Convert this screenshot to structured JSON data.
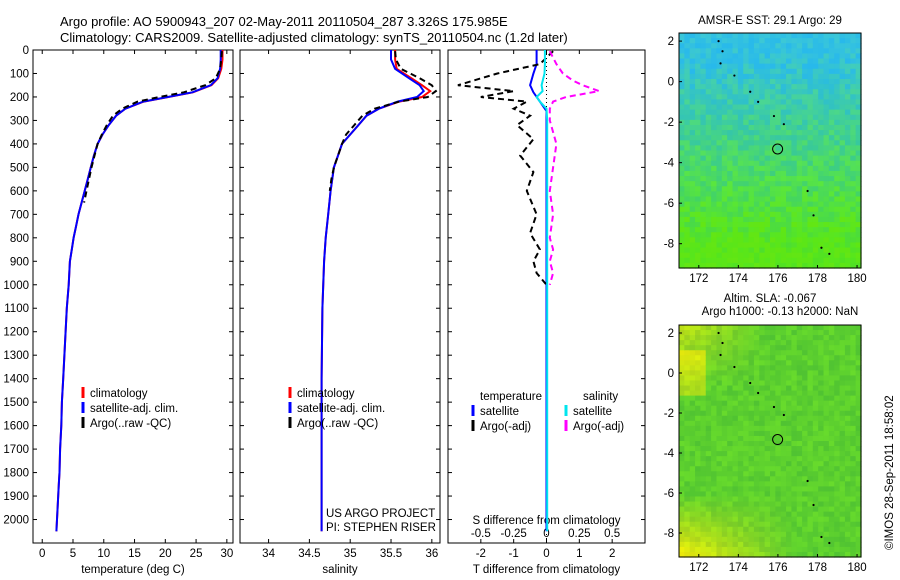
{
  "figure": {
    "title_line1": "Argo profile: AO 5900943_207 02-May-2011 20110504_287 3.326S 175.985E",
    "title_line2": "Climatology: CARS2009. Satellite-adjusted climatology: synTS_20110504.nc (1.2d later)",
    "side_stamp": "©IMOS 28-Sep-2011 18:58:02",
    "credit_line1": "US ARGO PROJECT",
    "credit_line2": "PI: STEPHEN RISER",
    "colors": {
      "climatology": "#ff0000",
      "satellite": "#0000ff",
      "argo": "#000000",
      "t_sat": "#0000ff",
      "s_sat": "#00e5ee",
      "s_argo": "#ff00ff"
    }
  },
  "chart_data": [
    {
      "id": "temperature",
      "type": "line",
      "xlabel": "temperature (deg C)",
      "ylabel": "",
      "xlim": [
        -1.5,
        31
      ],
      "ylim": [
        2100,
        0
      ],
      "xticks": [
        "0",
        "5",
        "10",
        "15",
        "20",
        "25",
        "30"
      ],
      "xtick_values": [
        0,
        5,
        10,
        15,
        20,
        25,
        30
      ],
      "yticks": [
        "0",
        "100",
        "200",
        "300",
        "400",
        "500",
        "600",
        "700",
        "800",
        "900",
        "1000",
        "1100",
        "1200",
        "1300",
        "1400",
        "1500",
        "1600",
        "1700",
        "1800",
        "1900",
        "2000"
      ],
      "ytick_values": [
        0,
        100,
        200,
        300,
        400,
        500,
        600,
        700,
        800,
        900,
        1000,
        1100,
        1200,
        1300,
        1400,
        1500,
        1600,
        1700,
        1800,
        1900,
        2000
      ],
      "legend": [
        "climatology",
        "satellite-adj. clim.",
        "Argo(..raw -QC)"
      ],
      "legend_position": "lower-middle",
      "series": [
        {
          "name": "climatology",
          "color": "#ff0000",
          "dash": "",
          "x": [
            29.3,
            29.3,
            29.1,
            28.6,
            27.5,
            24.5,
            20.5,
            16.5,
            13.5,
            12.0,
            10.8,
            9.8,
            9.0,
            8.4,
            7.9,
            7.4,
            6.9,
            6.4,
            5.9,
            5.5,
            5.1,
            4.8,
            4.5,
            4.3,
            4.0,
            3.8,
            3.6,
            3.4,
            3.2,
            3.1,
            2.9,
            2.8,
            2.7,
            2.6,
            2.5,
            2.4,
            2.3
          ],
          "y": [
            0,
            40,
            80,
            120,
            150,
            180,
            200,
            220,
            250,
            280,
            320,
            360,
            400,
            450,
            500,
            550,
            600,
            650,
            700,
            750,
            800,
            850,
            900,
            1000,
            1100,
            1200,
            1300,
            1400,
            1500,
            1600,
            1700,
            1800,
            1850,
            1900,
            1950,
            2000,
            2050
          ]
        },
        {
          "name": "satellite-adj. clim.",
          "color": "#0000ff",
          "dash": "",
          "x": [
            29.0,
            29.0,
            28.9,
            28.5,
            27.4,
            24.4,
            20.4,
            16.4,
            13.5,
            12.0,
            10.8,
            9.8,
            9.0,
            8.4,
            7.9,
            7.4,
            6.9,
            6.4,
            5.9,
            5.5,
            5.1,
            4.8,
            4.5,
            4.3,
            4.0,
            3.8,
            3.6,
            3.4,
            3.2,
            3.1,
            2.9,
            2.8,
            2.7,
            2.6,
            2.5,
            2.4,
            2.3
          ],
          "y": [
            0,
            40,
            80,
            120,
            150,
            180,
            200,
            220,
            250,
            280,
            320,
            360,
            400,
            450,
            500,
            550,
            600,
            650,
            700,
            750,
            800,
            850,
            900,
            1000,
            1100,
            1200,
            1300,
            1400,
            1500,
            1600,
            1700,
            1800,
            1850,
            1900,
            1950,
            2000,
            2050
          ]
        },
        {
          "name": "Argo(..raw -QC)",
          "color": "#000000",
          "dash": "6,4",
          "x": [
            29.2,
            29.1,
            28.9,
            28.2,
            26.5,
            23.0,
            19.0,
            15.5,
            13.0,
            11.5,
            10.5,
            9.7,
            9.0,
            8.5,
            8.0,
            7.6,
            7.2,
            6.8
          ],
          "y": [
            5,
            40,
            80,
            120,
            150,
            180,
            200,
            220,
            250,
            280,
            320,
            360,
            400,
            450,
            500,
            550,
            600,
            650
          ]
        }
      ]
    },
    {
      "id": "salinity",
      "type": "line",
      "xlabel": "salinity",
      "ylabel": "",
      "xlim": [
        33.65,
        36.1
      ],
      "ylim": [
        2100,
        0
      ],
      "xticks": [
        "34",
        "34.5",
        "35",
        "35.5",
        "36"
      ],
      "xtick_values": [
        34,
        34.5,
        35,
        35.5,
        36
      ],
      "legend": [
        "climatology",
        "satellite-adj. clim.",
        "Argo(..raw -QC)"
      ],
      "legend_position": "lower-middle",
      "series": [
        {
          "name": "climatology",
          "color": "#ff0000",
          "dash": "",
          "x": [
            35.55,
            35.55,
            35.57,
            35.75,
            35.88,
            35.98,
            35.88,
            35.6,
            35.35,
            35.2,
            35.1,
            35.0,
            34.9,
            34.85,
            34.8,
            34.76,
            34.73,
            34.7,
            34.68,
            34.66,
            34.65,
            34.65,
            34.65
          ],
          "y": [
            0,
            40,
            80,
            120,
            150,
            175,
            200,
            220,
            250,
            280,
            320,
            360,
            400,
            450,
            500,
            600,
            700,
            800,
            900,
            1100,
            1400,
            1800,
            2050
          ]
        },
        {
          "name": "satellite-adj. clim.",
          "color": "#0000ff",
          "dash": "",
          "x": [
            35.5,
            35.5,
            35.55,
            35.72,
            35.85,
            35.9,
            35.82,
            35.58,
            35.35,
            35.2,
            35.1,
            35.0,
            34.9,
            34.85,
            34.8,
            34.76,
            34.73,
            34.7,
            34.68,
            34.66,
            34.65,
            34.65,
            34.65
          ],
          "y": [
            0,
            40,
            80,
            120,
            150,
            175,
            200,
            220,
            250,
            280,
            320,
            360,
            400,
            450,
            500,
            600,
            700,
            800,
            900,
            1100,
            1400,
            1800,
            2050
          ]
        },
        {
          "name": "Argo(..raw -QC)",
          "color": "#000000",
          "dash": "6,4",
          "x": [
            35.55,
            35.56,
            35.62,
            35.85,
            36.0,
            36.05,
            35.95,
            35.6,
            35.3,
            35.15,
            35.05,
            34.95,
            34.9,
            34.85,
            34.8,
            34.77,
            34.75
          ],
          "y": [
            5,
            40,
            80,
            120,
            150,
            175,
            200,
            220,
            250,
            280,
            320,
            360,
            400,
            450,
            500,
            550,
            600
          ]
        }
      ]
    },
    {
      "id": "difference",
      "type": "line",
      "xlabel": "T difference from climatology",
      "xlabel_top": "S difference from climatology",
      "ylabel": "",
      "xlim": [
        -3,
        3
      ],
      "ylim": [
        2100,
        0
      ],
      "xticks": [
        "-2",
        "-1",
        "0",
        "1",
        "2"
      ],
      "xtick_values": [
        -2,
        -1,
        0,
        1,
        2
      ],
      "s_xticks": [
        "-0.5",
        "-0.25",
        "0",
        "0.25",
        "0.5"
      ],
      "s_xtick_values": [
        -0.5,
        -0.25,
        0,
        0.25,
        0.5
      ],
      "legend": [
        "temperature",
        "satellite",
        "Argo(-adj)",
        "salinity",
        "satellite",
        "Argo(-adj)"
      ],
      "legend_position": "lower-middle",
      "series": [
        {
          "name": "temperature satellite",
          "color": "#0000ff",
          "dash": "",
          "x": [
            -0.3,
            -0.3,
            -0.4,
            -0.5,
            -0.4,
            -0.2,
            0,
            0,
            0,
            0,
            0,
            0,
            0
          ],
          "y": [
            0,
            60,
            100,
            150,
            180,
            220,
            260,
            300,
            500,
            800,
            1200,
            1600,
            2050
          ]
        },
        {
          "name": "temperature Argo(-adj)",
          "color": "#000000",
          "dash": "6,4",
          "x": [
            0.2,
            -0.2,
            -1.5,
            -2.7,
            -1.0,
            -2.0,
            -0.6,
            -1.0,
            -0.5,
            -0.9,
            -0.4,
            -0.8,
            -0.4,
            -0.6,
            -0.3,
            -0.5,
            -0.2,
            -0.4,
            -0.3,
            0
          ],
          "y": [
            5,
            60,
            100,
            150,
            175,
            200,
            220,
            250,
            280,
            320,
            380,
            450,
            520,
            600,
            700,
            780,
            850,
            900,
            950,
            1000
          ]
        },
        {
          "name": "salinity satellite",
          "color": "#00e5ee",
          "dash": "",
          "x": [
            -0.05,
            -0.05,
            -0.06,
            -0.15,
            -0.12,
            -0.3,
            -0.2,
            0,
            0.02,
            0.02,
            0.02,
            0.02,
            0.02,
            0.02
          ],
          "y": [
            0,
            60,
            100,
            150,
            175,
            200,
            220,
            250,
            300,
            500,
            800,
            1200,
            1600,
            2050
          ]
        },
        {
          "name": "salinity Argo(-adj)",
          "color": "#ff00ff",
          "dash": "6,4",
          "x": [
            0.1,
            0.3,
            0.5,
            0.8,
            1.1,
            1.6,
            0.6,
            0.2,
            0.1,
            0.1,
            0.3,
            0.2,
            0.1,
            0.2,
            0.1,
            0.2,
            0.1,
            0.2,
            0.1
          ],
          "y": [
            5,
            60,
            100,
            130,
            150,
            175,
            200,
            220,
            250,
            300,
            400,
            500,
            600,
            700,
            800,
            850,
            900,
            950,
            1000
          ]
        }
      ]
    },
    {
      "id": "sst_map",
      "type": "heatmap",
      "title": "AMSR-E SST: 29.1  Argo: 29",
      "xlim": [
        171,
        180.2
      ],
      "ylim": [
        -9.2,
        2.4
      ],
      "xticks": [
        "172",
        "174",
        "176",
        "178",
        "180"
      ],
      "xtick_values": [
        172,
        174,
        176,
        178,
        180
      ],
      "yticks": [
        "2",
        "0",
        "-2",
        "-4",
        "-6",
        "-8"
      ],
      "ytick_values": [
        2,
        0,
        -2,
        -4,
        -6,
        -8
      ],
      "marker": {
        "lon": 175.985,
        "lat": -3.326
      }
    },
    {
      "id": "sla_map",
      "type": "heatmap",
      "title": "Altim. SLA: -0.067",
      "subtitle": "Argo h1000: -0.13 h2000: NaN",
      "xlim": [
        171,
        180.2
      ],
      "ylim": [
        -9.2,
        2.4
      ],
      "xticks": [
        "172",
        "174",
        "176",
        "178",
        "180"
      ],
      "xtick_values": [
        172,
        174,
        176,
        178,
        180
      ],
      "yticks": [
        "2",
        "0",
        "-2",
        "-4",
        "-6",
        "-8"
      ],
      "ytick_values": [
        2,
        0,
        -2,
        -4,
        -6,
        -8
      ],
      "marker": {
        "lon": 175.985,
        "lat": -3.326
      }
    }
  ]
}
